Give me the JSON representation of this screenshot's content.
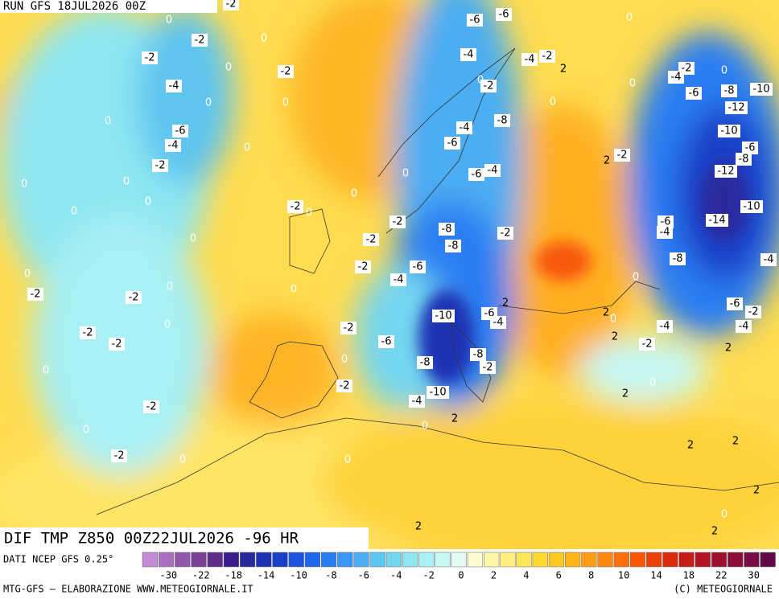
{
  "header": {
    "run": "RUN GFS 18JUL2026 00Z"
  },
  "map": {
    "title": "DIF TMP Z850 00Z22JUL2026 -96 HR",
    "contour_labels": [
      -2,
      0,
      -2,
      0,
      -2,
      0,
      -2,
      -4,
      0,
      0,
      0,
      -6,
      -4,
      0,
      -2,
      0,
      0,
      0,
      0,
      0,
      0,
      -2,
      -2,
      0,
      -2,
      -2,
      0,
      0,
      -2,
      0,
      -2,
      0,
      -2,
      0,
      0,
      0,
      -2,
      -2,
      -2,
      -4,
      -6,
      0,
      -2,
      -6,
      0,
      -2,
      -8,
      -10,
      -4,
      0,
      2,
      0,
      2,
      -6,
      -6,
      -4,
      -4,
      -2,
      2,
      0,
      -2,
      0,
      -8,
      -4,
      -6,
      -6,
      -4,
      -8,
      -8,
      -2,
      -10,
      -6,
      -4,
      2,
      -8,
      -2,
      2,
      -2,
      0,
      0,
      -2,
      -4,
      0,
      -8,
      -10,
      -6,
      -12,
      -10,
      -6,
      -8,
      -12,
      -10,
      -14,
      -6,
      -4,
      -8,
      0,
      -4,
      -6,
      -2,
      -4,
      -4,
      2,
      0,
      2,
      -2,
      2,
      0,
      2,
      2,
      2,
      2,
      0,
      2
    ]
  },
  "legend": {
    "source": "DATI NCEP GFS 0.25°",
    "colors": [
      "#c38ad3",
      "#aa6fbf",
      "#9256ab",
      "#7a3e96",
      "#5e2c8a",
      "#3b1e8c",
      "#2a2a9e",
      "#1e32b4",
      "#1a3fc8",
      "#1c52dc",
      "#1e66ec",
      "#2a7ef2",
      "#3a96f4",
      "#4cadf2",
      "#5ec4f0",
      "#74d6f0",
      "#8ee6f2",
      "#a8f0f4",
      "#c6f8f6",
      "#e4fcf4",
      "#fffbd0",
      "#fff5a8",
      "#ffee80",
      "#ffe558",
      "#ffd830",
      "#ffc820",
      "#ffb418",
      "#ff9e14",
      "#ff8810",
      "#ff700c",
      "#f85808",
      "#ec4008",
      "#dc2a0c",
      "#c81c18",
      "#b41424",
      "#a01030",
      "#8c0c3a",
      "#780a44",
      "#64084c"
    ],
    "labels": [
      -30,
      -22,
      -18,
      -14,
      -10,
      -8,
      -6,
      -4,
      -2,
      0,
      2,
      4,
      6,
      8,
      10,
      14,
      18,
      22,
      30
    ]
  },
  "footer": {
    "left": "MTG-GFS — ELABORAZIONE WWW.METEOGIORNALE.IT",
    "right": "(C) METEOGIORNALE"
  }
}
